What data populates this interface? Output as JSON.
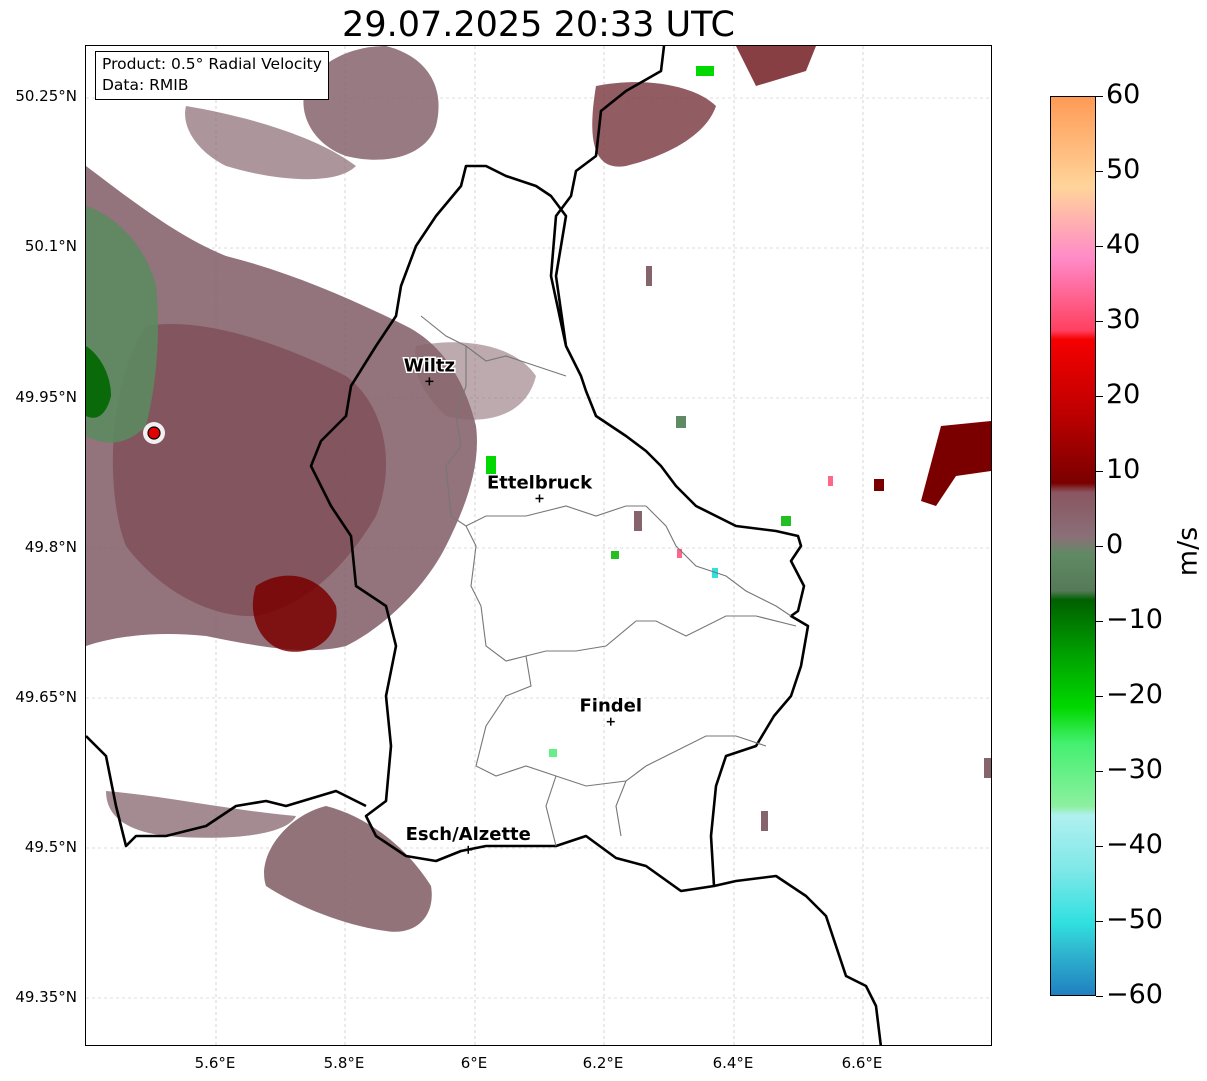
{
  "title": "29.07.2025 20:33 UTC",
  "info": {
    "product": "Product: 0.5° Radial Velocity",
    "data_source": "Data: RMIB"
  },
  "lat_labels": [
    "50.25°N",
    "50.1°N",
    "49.95°N",
    "49.8°N",
    "49.65°N",
    "49.5°N",
    "49.35°N"
  ],
  "lon_labels": [
    "5.6°E",
    "5.8°E",
    "6°E",
    "6.2°E",
    "6.4°E",
    "6.6°E"
  ],
  "cities": [
    {
      "name": "Wiltz",
      "lon": 5.93,
      "lat": 49.965
    },
    {
      "name": "Ettelbruck",
      "lon": 6.1,
      "lat": 49.848
    },
    {
      "name": "Findel",
      "lon": 6.21,
      "lat": 49.625
    },
    {
      "name": "Esch/Alzette",
      "lon": 5.99,
      "lat": 49.497
    }
  ],
  "radar_site": {
    "lon": 5.505,
    "lat": 49.915
  },
  "map_extent": {
    "lon_min": 5.4,
    "lon_max": 6.8,
    "lat_min": 49.3,
    "lat_max": 50.3
  },
  "colorbar": {
    "unit": "m/s",
    "min": -60,
    "max": 60,
    "tick_labels": [
      "60",
      "50",
      "40",
      "30",
      "20",
      "10",
      "0",
      "−10",
      "−20",
      "−30",
      "−40",
      "−50",
      "−60"
    ],
    "colors": {
      "orange": "#ff9a55",
      "peach": "#ffd49a",
      "pink": "#ff8ac8",
      "red": "#f50000",
      "darkred": "#7a0000",
      "mauve": "#8a5560",
      "gray_green": "#5f8a63",
      "darkgreen": "#006000",
      "green": "#00d800",
      "lightgreen": "#8df0a0",
      "cyan": "#30e0e0",
      "blue": "#1f80c0"
    }
  }
}
